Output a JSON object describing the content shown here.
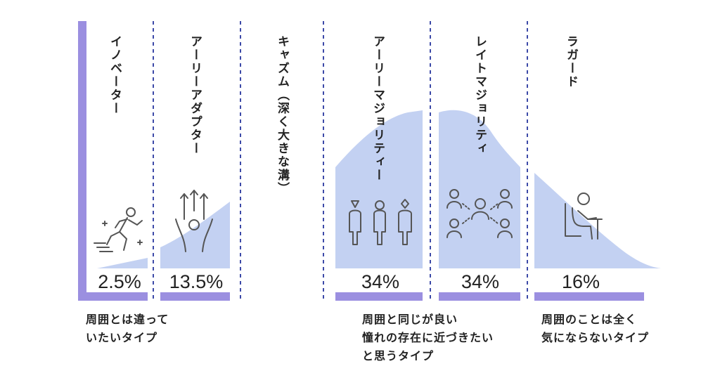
{
  "chart_data": {
    "type": "area",
    "title": "",
    "xlabel": "",
    "ylabel": "",
    "curve": "normal-distribution",
    "colors": {
      "area": "#c3d1f2",
      "accent": "#9b8fe0",
      "divider": "#3d4aa8",
      "text": "#222222"
    },
    "segments": [
      {
        "name": "イノベーター",
        "label": "イノベーター",
        "value": 2.5,
        "value_label": "2.5%",
        "icon": "running-person-icon"
      },
      {
        "name": "アーリーアダプター",
        "label": "アーリーアダプター",
        "value": 13.5,
        "value_label": "13.5%",
        "icon": "person-arrows-up-icon"
      },
      {
        "name": "キャズム",
        "label": "キャズム（深く大きな溝）",
        "value": null,
        "value_label": "",
        "icon": ""
      },
      {
        "name": "アーリーマジョリティー",
        "label": "アーリーマジョリティー",
        "value": 34,
        "value_label": "34%",
        "icon": "three-people-icon"
      },
      {
        "name": "レイトマジョリティ",
        "label": "レイトマジョリティ",
        "value": 34,
        "value_label": "34%",
        "icon": "network-people-icon"
      },
      {
        "name": "ラガード",
        "label": "ラガード",
        "value": 16,
        "value_label": "16%",
        "icon": "seated-person-icon"
      }
    ],
    "descriptions": [
      {
        "lines": [
          "周囲とは違って",
          "いたいタイプ"
        ]
      },
      {
        "lines": [
          "周囲と同じが良い",
          "憧れの存在に近づきたい",
          "と思うタイプ"
        ]
      },
      {
        "lines": [
          "周囲のことは全く",
          "気にならないタイプ"
        ]
      }
    ]
  }
}
